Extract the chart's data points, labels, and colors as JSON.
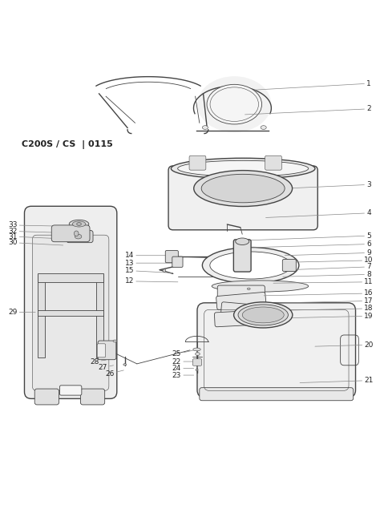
{
  "title": "C200S / CS  | 0115",
  "bg": "#ffffff",
  "lc": "#444444",
  "tc": "#222222",
  "figsize": [
    4.74,
    6.45
  ],
  "dpi": 100,
  "leaders_right": [
    [
      1,
      0.972,
      0.962,
      0.67,
      0.945
    ],
    [
      2,
      0.972,
      0.895,
      0.645,
      0.88
    ],
    [
      3,
      0.972,
      0.695,
      0.595,
      0.678
    ],
    [
      4,
      0.972,
      0.62,
      0.7,
      0.608
    ],
    [
      5,
      0.972,
      0.56,
      0.655,
      0.548
    ],
    [
      6,
      0.972,
      0.538,
      0.628,
      0.528
    ],
    [
      9,
      0.972,
      0.515,
      0.75,
      0.508
    ],
    [
      10,
      0.972,
      0.495,
      0.76,
      0.49
    ],
    [
      7,
      0.972,
      0.478,
      0.76,
      0.47
    ],
    [
      8,
      0.972,
      0.458,
      0.745,
      0.452
    ],
    [
      11,
      0.972,
      0.438,
      0.72,
      0.435
    ],
    [
      16,
      0.972,
      0.408,
      0.695,
      0.402
    ],
    [
      17,
      0.972,
      0.388,
      0.7,
      0.382
    ],
    [
      18,
      0.972,
      0.368,
      0.695,
      0.362
    ],
    [
      19,
      0.972,
      0.348,
      0.71,
      0.342
    ],
    [
      20,
      0.972,
      0.272,
      0.83,
      0.268
    ],
    [
      21,
      0.972,
      0.178,
      0.79,
      0.172
    ]
  ],
  "leaders_left": [
    [
      14,
      0.34,
      0.508,
      0.458,
      0.508
    ],
    [
      13,
      0.34,
      0.488,
      0.46,
      0.488
    ],
    [
      15,
      0.34,
      0.468,
      0.455,
      0.462
    ],
    [
      12,
      0.34,
      0.44,
      0.468,
      0.438
    ]
  ],
  "leaders_bottom_left": [
    [
      25,
      0.465,
      0.248,
      0.51,
      0.258
    ],
    [
      22,
      0.465,
      0.228,
      0.51,
      0.228
    ],
    [
      24,
      0.465,
      0.21,
      0.51,
      0.21
    ],
    [
      23,
      0.465,
      0.192,
      0.51,
      0.192
    ],
    [
      28,
      0.248,
      0.228,
      0.278,
      0.232
    ],
    [
      27,
      0.27,
      0.212,
      0.298,
      0.218
    ],
    [
      26,
      0.288,
      0.196,
      0.325,
      0.205
    ],
    [
      29,
      0.032,
      0.358,
      0.092,
      0.358
    ],
    [
      30,
      0.032,
      0.542,
      0.165,
      0.535
    ],
    [
      31,
      0.032,
      0.558,
      0.165,
      0.552
    ],
    [
      32,
      0.032,
      0.572,
      0.165,
      0.568
    ],
    [
      33,
      0.032,
      0.588,
      0.178,
      0.585
    ]
  ]
}
